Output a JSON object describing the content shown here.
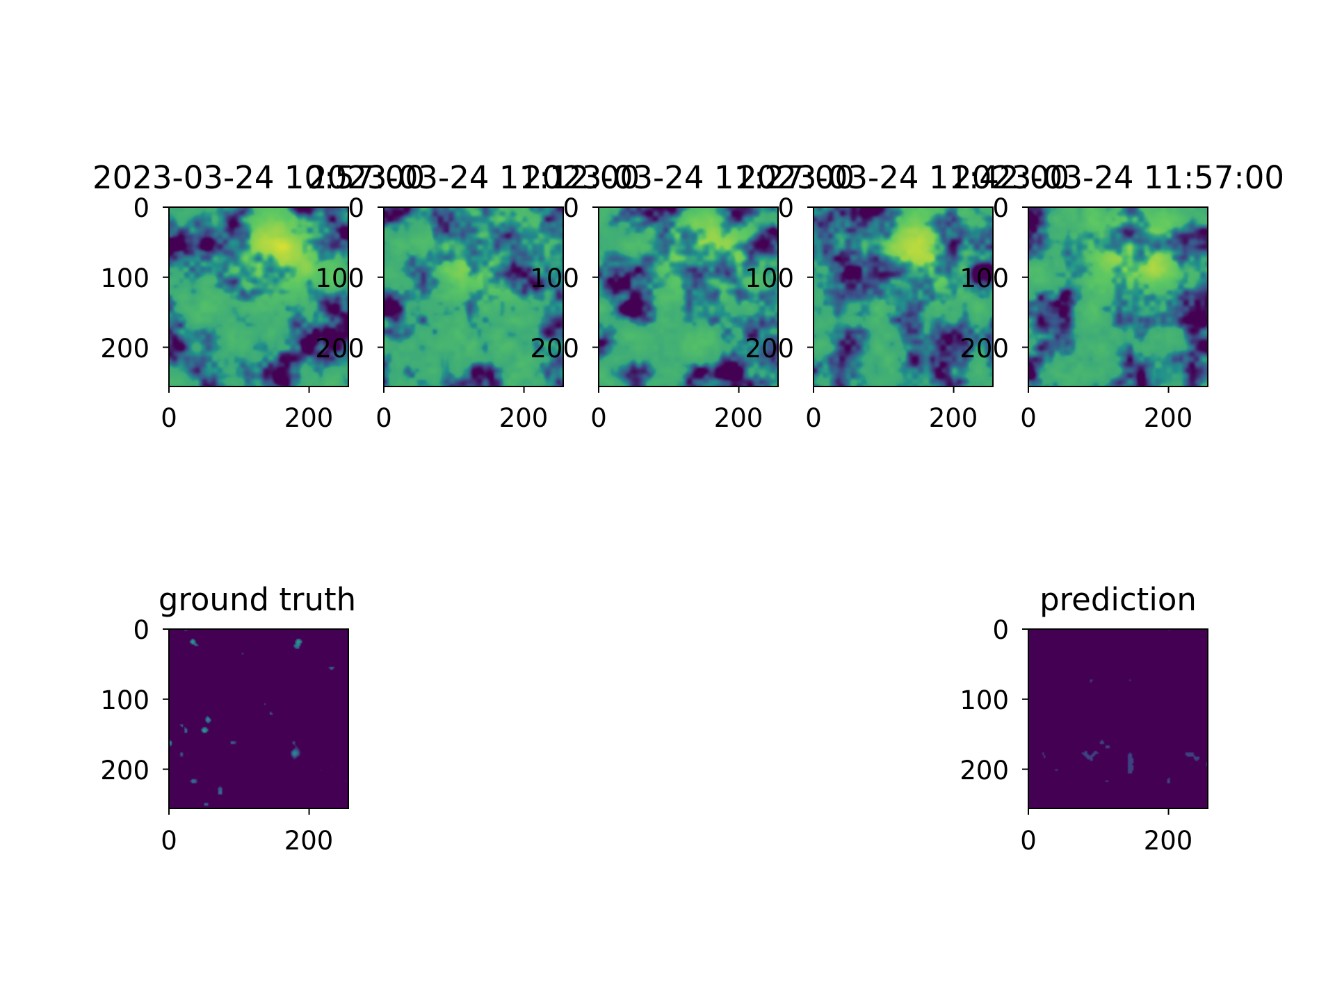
{
  "chart_data": {
    "type": "heatmap",
    "colormap": "viridis",
    "colors": {
      "viridis_dark": "#440154",
      "viridis_blue": "#3b528b",
      "viridis_teal": "#21918c",
      "viridis_green": "#5ec962",
      "viridis_yellow": "#fde725",
      "axes_frame": "#000000"
    },
    "image_extent": [
      0,
      256
    ],
    "panels": [
      {
        "id": "sat-1",
        "title": "2023-03-24 10:57:00",
        "kind": "satellite",
        "seed": 1,
        "xticks": [
          0,
          200
        ],
        "yticks": [
          0,
          100,
          200
        ]
      },
      {
        "id": "sat-2",
        "title": "2023-03-24 11:12:00",
        "kind": "satellite",
        "seed": 2,
        "xticks": [
          0,
          200
        ],
        "yticks": [
          0,
          100,
          200
        ]
      },
      {
        "id": "sat-3",
        "title": "2023-03-24 11:27:00",
        "kind": "satellite",
        "seed": 3,
        "xticks": [
          0,
          200
        ],
        "yticks": [
          0,
          100,
          200
        ]
      },
      {
        "id": "sat-4",
        "title": "2023-03-24 11:42:00",
        "kind": "satellite",
        "seed": 4,
        "xticks": [
          0,
          200
        ],
        "yticks": [
          0,
          100,
          200
        ]
      },
      {
        "id": "sat-5",
        "title": "2023-03-24 11:57:00",
        "kind": "satellite",
        "seed": 5,
        "xticks": [
          0,
          200
        ],
        "yticks": [
          0,
          100,
          200
        ]
      },
      {
        "id": "ground-truth",
        "title": "ground truth",
        "kind": "precip-truth",
        "seed": 6,
        "xticks": [
          0,
          200
        ],
        "yticks": [
          0,
          100,
          200
        ]
      },
      {
        "id": "prediction",
        "title": "prediction",
        "kind": "precip-pred",
        "seed": 7,
        "xticks": [
          0,
          200
        ],
        "yticks": [
          0,
          100,
          200
        ]
      }
    ]
  }
}
